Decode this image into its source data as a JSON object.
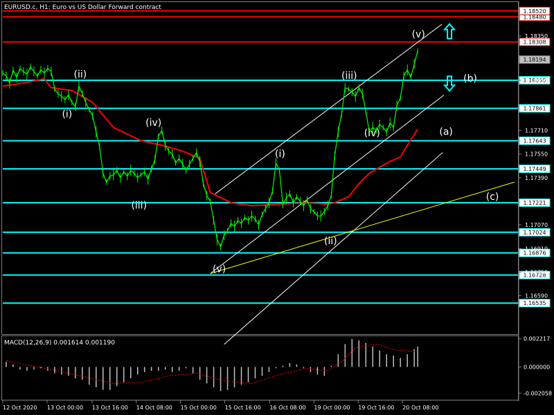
{
  "chart_data": {
    "type": "line",
    "title": "EURUSD.c, H1:  Euro vs US Dollar Forward contract",
    "subtitle": "",
    "xlabel": "",
    "ylabel": "",
    "ylim": [
      1.1633,
      1.1858
    ],
    "grid": false,
    "background": "#000000",
    "colors": {
      "price": "#00ff00",
      "moving_average": "#ff0000",
      "channel": "#ffffff",
      "trendline_c": "#ffff00",
      "resistance": "#ff0000",
      "support": "#00ffff",
      "wave_label": "#ffffff",
      "corrective_label": "#ffff00",
      "arrows": "#00ffff",
      "macd_hist": "#c0c0c0",
      "macd_signal": "#ff0000"
    },
    "x_ticks": [
      "12 Oct 2020",
      "13 Oct 00:00",
      "13 Oct 16:00",
      "14 Oct 08:00",
      "15 Oct 00:00",
      "15 Oct 16:00",
      "16 Oct 08:00",
      "19 Oct 00:00",
      "19 Oct 16:00",
      "20 Oct 08:00"
    ],
    "y_ticks": [
      "1.18350",
      "1.18050",
      "1.17710",
      "1.17550",
      "1.17390",
      "1.17070",
      "1.16910",
      "1.16750",
      "1.16590"
    ],
    "series": [
      {
        "name": "",
        "role": "price",
        "x": [
          0,
          5,
          10,
          15,
          20,
          25,
          30,
          35,
          40,
          45,
          50,
          55,
          60,
          65,
          70,
          75,
          80,
          85,
          90,
          95,
          100,
          105,
          110,
          115,
          120,
          125,
          130,
          135,
          140,
          145,
          150,
          155,
          160,
          165,
          170,
          175,
          180,
          185,
          190,
          195,
          200,
          205,
          210,
          215,
          220,
          225,
          230,
          235,
          240,
          245,
          250,
          255,
          260,
          265,
          270,
          275,
          280,
          285,
          290,
          295,
          300,
          305,
          310,
          315,
          320,
          325,
          330,
          335,
          340,
          345,
          350,
          355,
          360,
          365,
          370,
          375,
          380,
          385,
          390,
          395,
          400,
          405,
          410,
          415,
          420,
          425,
          430,
          435,
          440,
          445,
          450,
          455,
          460,
          465,
          470,
          475,
          480,
          485,
          490,
          495,
          500,
          505,
          510,
          515,
          520,
          525,
          530,
          535,
          540,
          545,
          550,
          555,
          560,
          565,
          570,
          575,
          580,
          585,
          590,
          595,
          600
        ],
        "y": [
          1.181,
          1.1808,
          1.1803,
          1.1812,
          1.1807,
          1.1813,
          1.1811,
          1.1809,
          1.1814,
          1.1811,
          1.1808,
          1.1812,
          1.181,
          1.1813,
          1.1811,
          1.1799,
          1.1796,
          1.1794,
          1.1792,
          1.1795,
          1.179,
          1.1787,
          1.1801,
          1.1796,
          1.179,
          1.1785,
          1.1781,
          1.177,
          1.176,
          1.1742,
          1.1736,
          1.174,
          1.1741,
          1.1744,
          1.1739,
          1.1743,
          1.174,
          1.1744,
          1.1742,
          1.1739,
          1.1741,
          1.1743,
          1.1738,
          1.1745,
          1.1751,
          1.1767,
          1.1771,
          1.1761,
          1.1757,
          1.1755,
          1.1749,
          1.1752,
          1.1748,
          1.1744,
          1.1748,
          1.1752,
          1.1756,
          1.175,
          1.1735,
          1.1727,
          1.1723,
          1.171,
          1.1697,
          1.1692,
          1.17,
          1.1703,
          1.1708,
          1.1706,
          1.171,
          1.1708,
          1.1712,
          1.171,
          1.1713,
          1.1711,
          1.1707,
          1.1714,
          1.1718,
          1.1722,
          1.173,
          1.1749,
          1.1744,
          1.1721,
          1.1725,
          1.1728,
          1.1722,
          1.1726,
          1.1723,
          1.172,
          1.1724,
          1.1718,
          1.1716,
          1.1713,
          1.1713,
          1.1716,
          1.172,
          1.1727,
          1.1754,
          1.177,
          1.1782,
          1.18,
          1.1799,
          1.1797,
          1.1794,
          1.18,
          1.1796,
          1.1784,
          1.177,
          1.1773,
          1.1771,
          1.1775,
          1.1773,
          1.177,
          1.1776,
          1.1773,
          1.1788,
          1.1793,
          1.1808,
          1.1812,
          1.1807,
          1.1816,
          1.1825
        ]
      },
      {
        "name": "",
        "role": "moving_average",
        "x": [
          0,
          40,
          60,
          70,
          100,
          130,
          160,
          200,
          230,
          260,
          285,
          300,
          330,
          360,
          400,
          440,
          470,
          480,
          500,
          515,
          530,
          545,
          560,
          575,
          585,
          600
        ],
        "y": [
          1.1801,
          1.1804,
          1.1806,
          1.18,
          1.1798,
          1.179,
          1.1773,
          1.1764,
          1.1761,
          1.1757,
          1.1752,
          1.1729,
          1.1722,
          1.172,
          1.1721,
          1.1722,
          1.1721,
          1.1722,
          1.1726,
          1.1735,
          1.1742,
          1.1746,
          1.175,
          1.1753,
          1.1761,
          1.1772
        ]
      }
    ],
    "horizontal_levels": [
      {
        "value": 1.1848,
        "label": "1.18480",
        "kind": "resistance"
      },
      {
        "value": 1.1852,
        "label": "1.18520",
        "kind": "resistance"
      },
      {
        "value": 1.1831,
        "label": "1.18308",
        "kind": "resistance"
      },
      {
        "value": 1.1819,
        "label": "1.18194",
        "kind": "current"
      },
      {
        "value": 1.1805,
        "label": "1.18050",
        "kind": "support"
      },
      {
        "value": 1.1786,
        "label": "1.17861",
        "kind": "support"
      },
      {
        "value": 1.1764,
        "label": "1.17643",
        "kind": "support"
      },
      {
        "value": 1.1745,
        "label": "1.17449",
        "kind": "support"
      },
      {
        "value": 1.1722,
        "label": "1.17221",
        "kind": "support"
      },
      {
        "value": 1.1702,
        "label": "1.17024",
        "kind": "support"
      },
      {
        "value": 1.1688,
        "label": "1.16876",
        "kind": "support"
      },
      {
        "value": 1.1673,
        "label": "1.16728",
        "kind": "support"
      },
      {
        "value": 1.1654,
        "label": "1.16535",
        "kind": "support"
      }
    ],
    "annotations": [
      {
        "text": "(ii)",
        "bar": 112,
        "value": 1.1807,
        "style": "wave"
      },
      {
        "text": "(i)",
        "bar": 93,
        "value": 1.178,
        "style": "wave"
      },
      {
        "text": "(iv)",
        "bar": 218,
        "value": 1.1774,
        "style": "wave"
      },
      {
        "text": "(iii)",
        "bar": 197,
        "value": 1.1718,
        "style": "wave"
      },
      {
        "text": "(i)",
        "bar": 401,
        "value": 1.1753,
        "style": "wave"
      },
      {
        "text": "(v)",
        "bar": 313,
        "value": 1.1675,
        "style": "wave"
      },
      {
        "text": "(iii)",
        "bar": 501,
        "value": 1.1806,
        "style": "wave"
      },
      {
        "text": "(iv)",
        "bar": 534,
        "value": 1.1767,
        "style": "wave"
      },
      {
        "text": "(ii)",
        "bar": 474,
        "value": 1.1694,
        "style": "wave"
      },
      {
        "text": "(v)",
        "bar": 601,
        "value": 1.1834,
        "style": "wave"
      },
      {
        "text": "(b)",
        "bar": 676,
        "value": 1.1804,
        "style": "corrective"
      },
      {
        "text": "(a)",
        "bar": 641,
        "value": 1.1768,
        "style": "corrective"
      },
      {
        "text": "(c)",
        "bar": 708,
        "value": 1.1724,
        "style": "corrective"
      }
    ],
    "arrows": [
      {
        "direction": "up",
        "bar": 646,
        "value": 1.1838
      },
      {
        "direction": "down",
        "bar": 646,
        "value": 1.1803
      }
    ],
    "channel_lines": [
      {
        "from": [
          307,
          1.1728
        ],
        "to": [
          635,
          1.1843
        ],
        "role": "channel"
      },
      {
        "from": [
          300,
          1.1674
        ],
        "to": [
          638,
          1.1795
        ],
        "role": "channel"
      },
      {
        "from": [
          320,
          1.1626
        ],
        "to": [
          636,
          1.1756
        ],
        "role": "channel"
      },
      {
        "from": [
          300,
          1.1674
        ],
        "to": [
          740,
          1.1736
        ],
        "role": "trendline_c"
      }
    ],
    "macd": {
      "label": "MACD(12,26,9) 0.001614 0.001190",
      "ylim": [
        -0.00258,
        0.00242
      ],
      "y_ticks": [
        "0.002217",
        "0.000000",
        "-0.002058"
      ],
      "histogram": {
        "x": [
          5,
          15,
          25,
          35,
          45,
          55,
          65,
          75,
          85,
          95,
          105,
          115,
          125,
          135,
          145,
          155,
          165,
          175,
          185,
          195,
          205,
          215,
          225,
          235,
          245,
          255,
          265,
          275,
          285,
          295,
          305,
          315,
          325,
          335,
          345,
          355,
          365,
          375,
          385,
          395,
          405,
          415,
          425,
          435,
          445,
          455,
          465,
          475,
          485,
          495,
          505,
          515,
          525,
          535,
          545,
          555,
          565,
          575,
          585,
          595,
          600
        ],
        "values": [
          0.0004,
          0.0002,
          -0.0002,
          -0.0003,
          -0.0002,
          -0.0001,
          -0.0003,
          -0.0005,
          -0.0006,
          -0.0007,
          -0.0009,
          -0.001,
          -0.0014,
          -0.0016,
          -0.0018,
          -0.0018,
          -0.0015,
          -0.0012,
          -0.0009,
          -0.0006,
          -0.0004,
          -0.0003,
          -0.0003,
          -0.0002,
          -0.0004,
          -0.0003,
          -0.0001,
          -0.0005,
          -0.001,
          -0.0013,
          -0.0016,
          -0.0019,
          -0.0018,
          -0.0016,
          -0.0014,
          -0.0012,
          -0.0009,
          -0.0007,
          -0.0004,
          -0.0001,
          0.0001,
          0.0003,
          0.0002,
          -0.0001,
          -0.0004,
          -0.0006,
          -0.0007,
          0.0001,
          0.001,
          0.0018,
          0.0022,
          0.0021,
          0.0019,
          0.0016,
          0.0013,
          0.001,
          0.0009,
          0.0007,
          0.001,
          0.0014,
          0.0016
        ]
      },
      "signal": {
        "x": [
          5,
          40,
          80,
          120,
          160,
          200,
          240,
          280,
          320,
          360,
          400,
          440,
          470,
          490,
          510,
          540,
          570,
          600
        ],
        "y": [
          0.0005,
          0.0001,
          -0.0003,
          -0.0008,
          -0.0013,
          -0.0012,
          -0.0007,
          -0.0005,
          -0.0011,
          -0.0013,
          -0.0006,
          -0.0001,
          -0.0003,
          0.0004,
          0.0015,
          0.0018,
          0.0013,
          0.0012
        ]
      }
    }
  }
}
